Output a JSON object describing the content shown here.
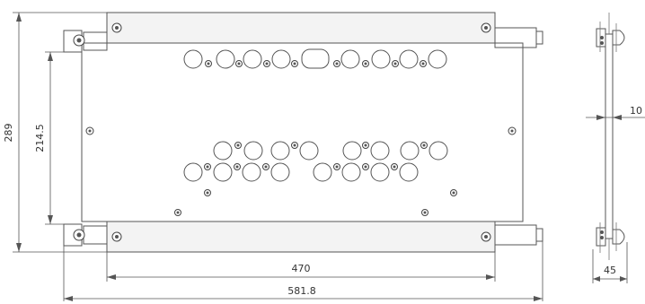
{
  "dimensions": {
    "overall_height": "289",
    "mount_height": "214.5",
    "rail_spacing": "470",
    "overall_width": "581.8",
    "side_offset": "10",
    "side_depth": "45"
  }
}
